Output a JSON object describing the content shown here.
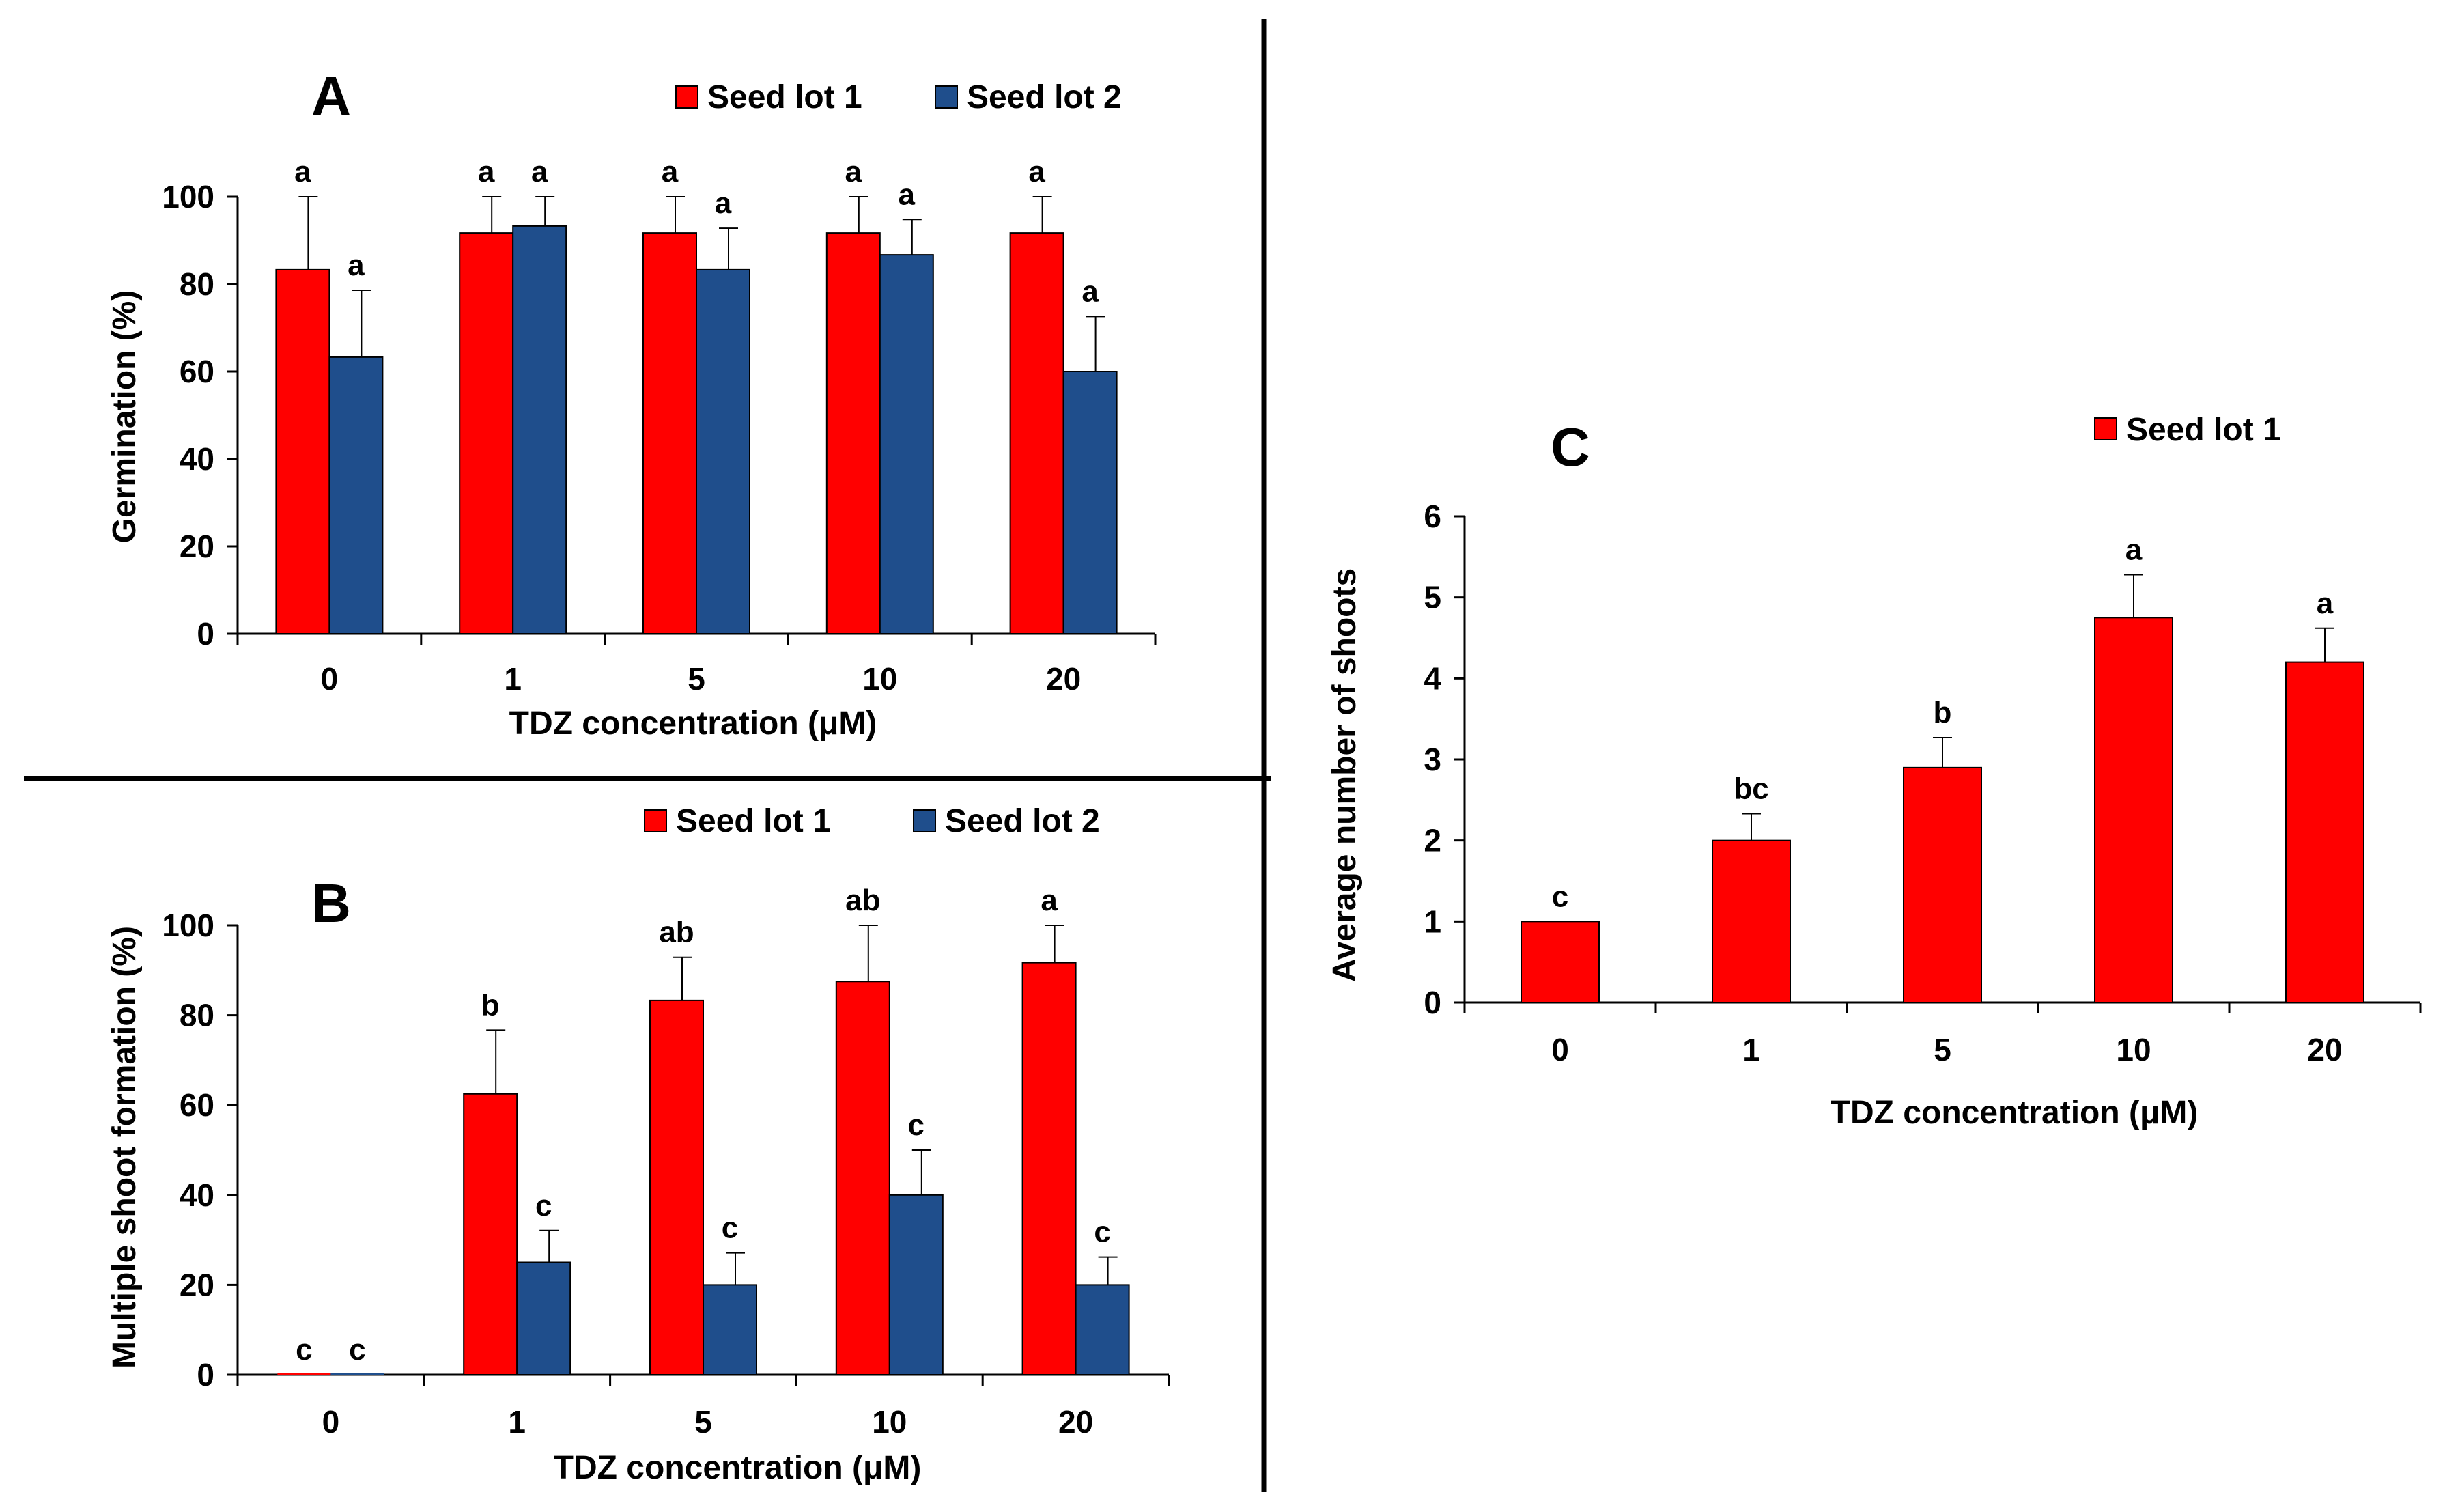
{
  "colors": {
    "seed_lot_1": "#ff0000",
    "seed_lot_2": "#1f4e8c",
    "axis": "#000000",
    "divider": "#000000"
  },
  "chart_data": [
    {
      "panel": "A",
      "type": "bar",
      "xlabel": "TDZ concentration (μM)",
      "ylabel": "Germination (%)",
      "categories": [
        "0",
        "1",
        "5",
        "10",
        "20"
      ],
      "ylim": [
        0,
        100
      ],
      "yticks": [
        0,
        20,
        40,
        60,
        80,
        100
      ],
      "legend_position": "top-right",
      "series": [
        {
          "name": "Seed lot 1",
          "color": "#ff0000",
          "values": [
            83.3,
            91.7,
            91.7,
            91.7,
            91.7
          ],
          "errors": [
            16.7,
            8.3,
            8.3,
            8.3,
            8.3
          ],
          "labels": [
            "a",
            "a",
            "a",
            "a",
            "a"
          ]
        },
        {
          "name": "Seed lot 2",
          "color": "#1f4e8c",
          "values": [
            63.3,
            93.3,
            83.3,
            86.7,
            60.0
          ],
          "errors": [
            15.3,
            6.7,
            9.5,
            8.1,
            12.6
          ],
          "labels": [
            "a",
            "a",
            "a",
            "a",
            "a"
          ]
        }
      ]
    },
    {
      "panel": "B",
      "type": "bar",
      "xlabel": "TDZ concentration (μM)",
      "ylabel": "Multiple shoot formation (%)",
      "categories": [
        "0",
        "1",
        "5",
        "10",
        "20"
      ],
      "ylim": [
        0,
        100
      ],
      "yticks": [
        0,
        20,
        40,
        60,
        80,
        100
      ],
      "legend_position": "top-right",
      "series": [
        {
          "name": "Seed lot 1",
          "color": "#ff0000",
          "values": [
            0,
            62.5,
            83.3,
            87.5,
            91.7
          ],
          "errors": [
            0,
            14.2,
            9.6,
            12.5,
            8.3
          ],
          "labels": [
            "c",
            "b",
            "ab",
            "ab",
            "a"
          ]
        },
        {
          "name": "Seed lot 2",
          "color": "#1f4e8c",
          "values": [
            0,
            25.0,
            20.0,
            40.0,
            20.0
          ],
          "errors": [
            0,
            7.1,
            7.1,
            10.0,
            6.2
          ],
          "labels": [
            "c",
            "c",
            "c",
            "c",
            "c"
          ]
        }
      ]
    },
    {
      "panel": "C",
      "type": "bar",
      "xlabel": "TDZ concentration (μM)",
      "ylabel": "Average number of shoots",
      "categories": [
        "0",
        "1",
        "5",
        "10",
        "20"
      ],
      "ylim": [
        0,
        6
      ],
      "yticks": [
        0,
        1,
        2,
        3,
        4,
        5,
        6
      ],
      "legend_position": "top-right",
      "series": [
        {
          "name": "Seed lot 1",
          "color": "#ff0000",
          "values": [
            1.0,
            2.0,
            2.9,
            4.75,
            4.2
          ],
          "errors": [
            0,
            0.33,
            0.37,
            0.53,
            0.42
          ],
          "labels": [
            "c",
            "bc",
            "b",
            "a",
            "a"
          ]
        }
      ]
    }
  ]
}
